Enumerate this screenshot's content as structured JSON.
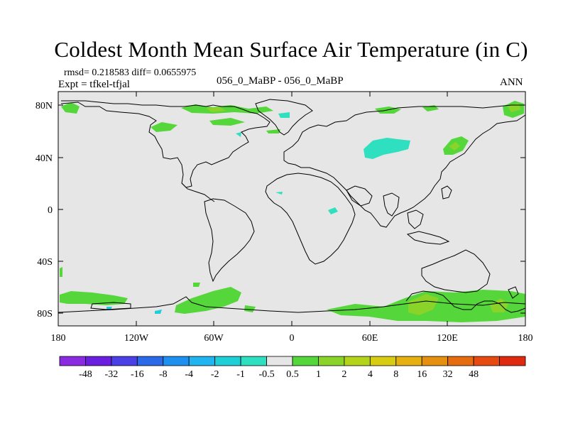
{
  "title": "Coldest Month Mean Surface Air Temperature (in C)",
  "stats": "rmsd= 0.218583  diff= 0.0655975",
  "experiment": "Expt = tfkel-tfjal",
  "runs": "056_0_MaBP - 056_0_MaBP",
  "season": "ANN",
  "colors": {
    "ocean_land_neutral": "#e6e6e6",
    "coastline": "#000000"
  },
  "axes": {
    "lon_ticks": [
      "180",
      "120W",
      "60W",
      "0",
      "60E",
      "120E",
      "180"
    ],
    "lat_ticks": [
      "80N",
      "40N",
      "0",
      "40S",
      "80S"
    ]
  },
  "colorbar": {
    "colors": [
      "#8a2be2",
      "#6a1fe0",
      "#4b3fe6",
      "#2a6ae8",
      "#1e90f0",
      "#20b4f0",
      "#1ecfd8",
      "#2fe0c0",
      "#e6e6e6",
      "#55d63a",
      "#8ad42a",
      "#b4d41c",
      "#d8cc12",
      "#e6b010",
      "#e69010",
      "#e66c10",
      "#e64a10",
      "#e02a10"
    ],
    "labels": [
      "-48",
      "-32",
      "-16",
      "-8",
      "-4",
      "-2",
      "-1",
      "-0.5",
      "0.5",
      "1",
      "2",
      "4",
      "8",
      "16",
      "32",
      "48"
    ]
  }
}
